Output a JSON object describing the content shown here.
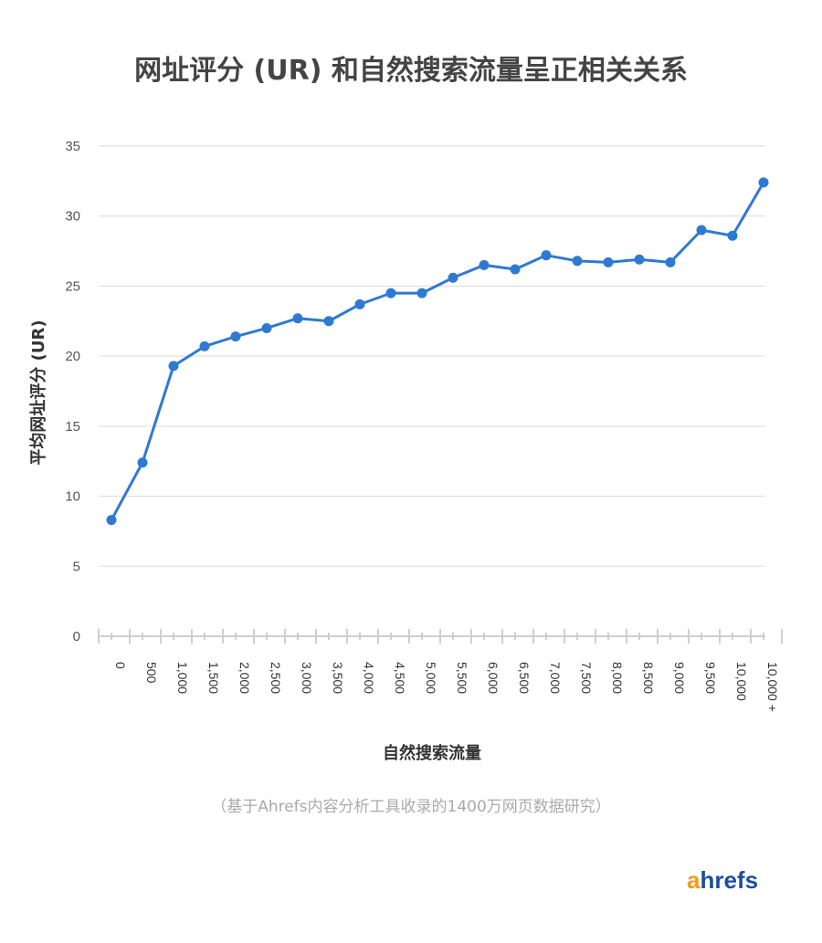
{
  "chart_data": {
    "type": "line",
    "title": "网址评分 (UR) 和自然搜索流量呈正相关关系",
    "xlabel": "自然搜索流量",
    "ylabel": "平均网址评分 (UR)",
    "ylim": [
      0,
      35
    ],
    "yticks": [
      0,
      5,
      10,
      15,
      20,
      25,
      30,
      35
    ],
    "grid": true,
    "categories": [
      "0",
      "500",
      "1,000",
      "1,500",
      "2,000",
      "2,500",
      "3,000",
      "3,500",
      "4,000",
      "4,500",
      "5,000",
      "5,500",
      "6,000",
      "6,500",
      "7,000",
      "7,500",
      "8,000",
      "8,500",
      "9,000",
      "9,500",
      "10,000",
      "10,000 +"
    ],
    "series": [
      {
        "name": "平均网址评分 (UR)",
        "color": "#2f7ad1",
        "values": [
          8.3,
          12.4,
          19.3,
          20.7,
          21.4,
          22.0,
          22.7,
          22.5,
          23.7,
          24.5,
          24.5,
          25.6,
          26.5,
          26.2,
          27.2,
          26.8,
          26.7,
          26.9,
          26.7,
          29.0,
          28.6,
          32.4
        ]
      }
    ],
    "note": "（基于Ahrefs内容分析工具收录的1400万网页数据研究）",
    "logo": {
      "a": "a",
      "rest": "hrefs"
    }
  }
}
